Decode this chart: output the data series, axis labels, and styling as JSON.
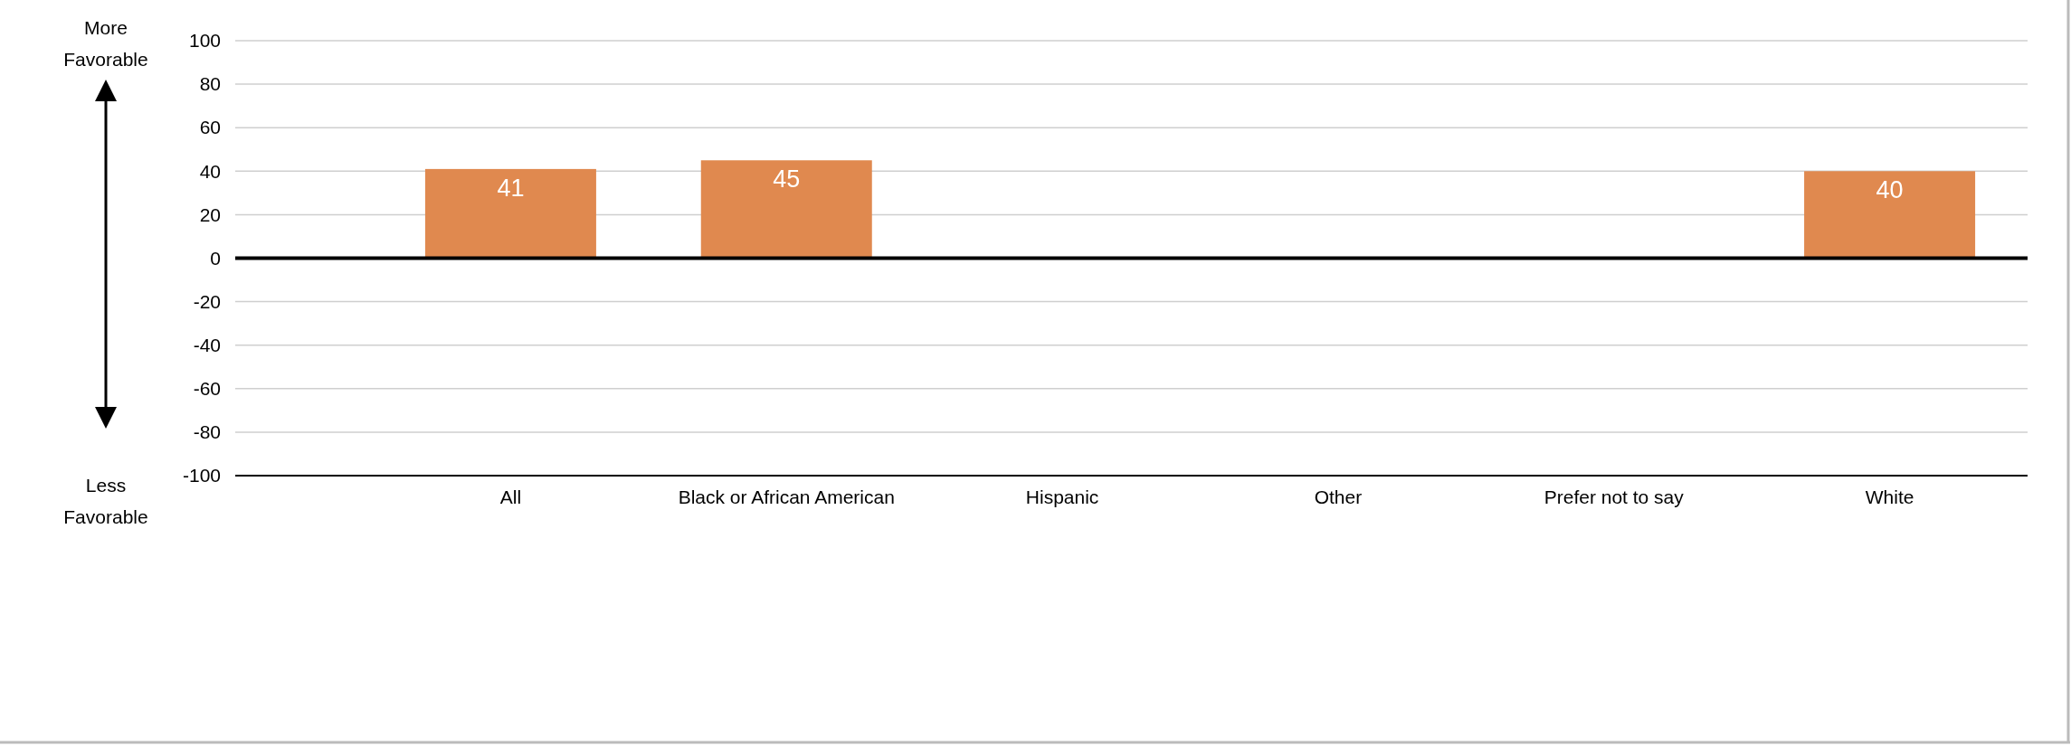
{
  "chart_data": {
    "type": "bar",
    "categories": [
      "All",
      "Black or African American",
      "Hispanic",
      "Other",
      "Prefer not to say",
      "White"
    ],
    "values": [
      41,
      45,
      null,
      null,
      null,
      40
    ],
    "color": "#e0894f",
    "ylim": [
      -100,
      100
    ],
    "yticks": [
      -100,
      -80,
      -60,
      -40,
      -20,
      0,
      20,
      40,
      60,
      80,
      100
    ],
    "grid": "y",
    "data_labels": true,
    "ref_lines": [
      {
        "axis": "y",
        "value": 0,
        "color": "#000000"
      }
    ],
    "annotations": [
      "More Favorable",
      "Less Favorable"
    ]
  }
}
